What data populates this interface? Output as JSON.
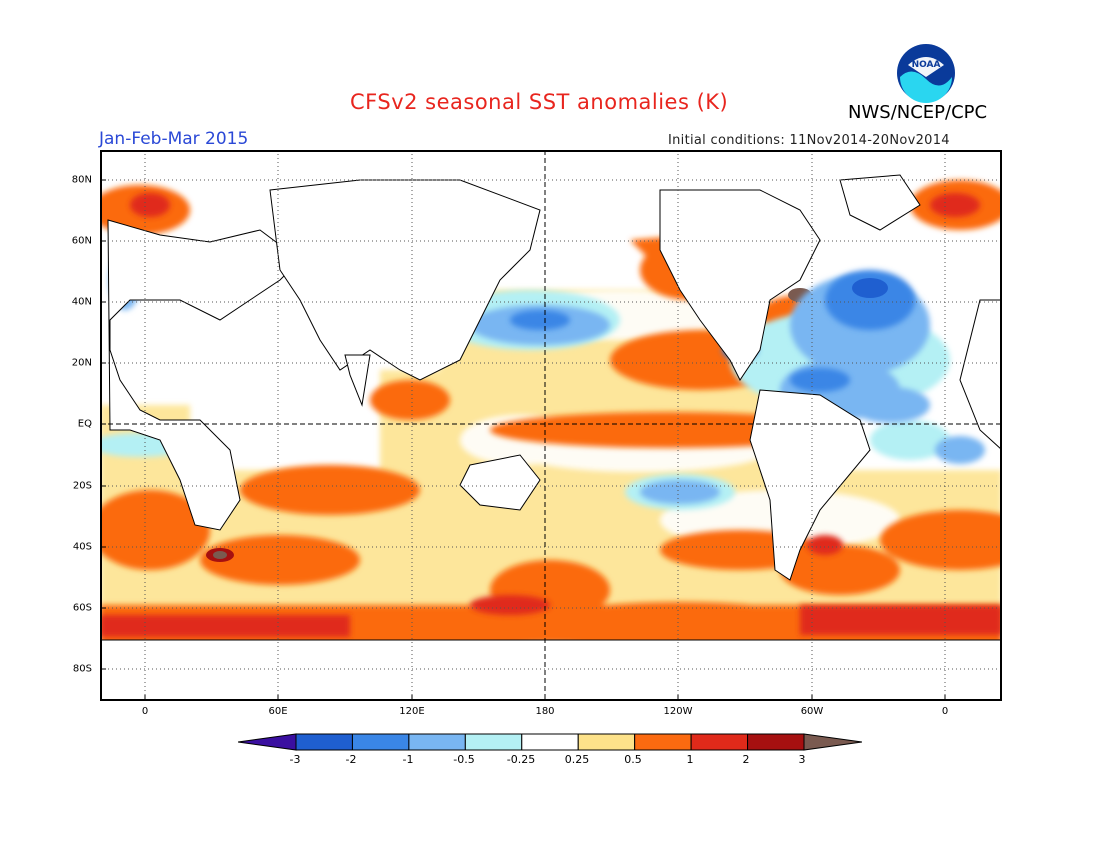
{
  "header": {
    "title": "CFSv2 seasonal SST anomalies (K)",
    "period": "Jan-Feb-Mar 2015",
    "initial_conditions": "Initial conditions: 11Nov2014-20Nov2014",
    "org": "NWS/NCEP/CPC",
    "logo_text": "NOAA"
  },
  "map": {
    "lat_labels": [
      "80N",
      "60N",
      "40N",
      "20N",
      "EQ",
      "20S",
      "40S",
      "60S",
      "80S"
    ],
    "lon_labels": [
      "0",
      "60E",
      "120E",
      "180",
      "120W",
      "60W",
      "0"
    ]
  },
  "colorbar": {
    "tick_labels": [
      "-3",
      "-2",
      "-1",
      "-0.5",
      "-0.25",
      "0.25",
      "0.5",
      "1",
      "2",
      "3"
    ],
    "colors": [
      "#3a0fa0",
      "#1f5fd0",
      "#3a86e6",
      "#79b6f2",
      "#b4f0f4",
      "#ffffff",
      "#fde28a",
      "#fb6a10",
      "#e02a1a",
      "#a61010",
      "#7a5a50"
    ]
  }
}
